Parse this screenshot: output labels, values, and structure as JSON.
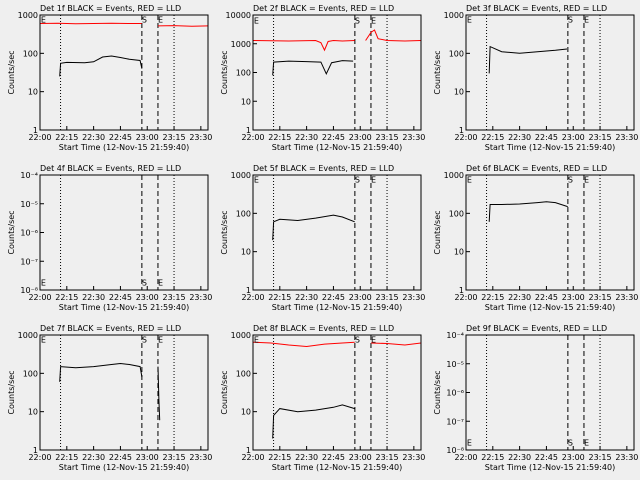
{
  "chart_data": [
    {
      "type": "line",
      "title": "Det 1f BLACK = Events, RED = LLD",
      "xlabel": "Start Time (12-Nov-15 21:59:40)",
      "ylabel": "Counts/sec",
      "log_y": true,
      "xlim": [
        0,
        94
      ],
      "xticks": [
        {
          "value": 0,
          "label": "22:00"
        },
        {
          "value": 15,
          "label": "22:15"
        },
        {
          "value": 30,
          "label": "22:30"
        },
        {
          "value": 45,
          "label": "22:45"
        },
        {
          "value": 60,
          "label": "23:00"
        },
        {
          "value": 75,
          "label": "23:15"
        },
        {
          "value": 90,
          "label": "23:30"
        }
      ],
      "ylim": [
        1,
        1000
      ],
      "yticks": [
        1,
        10,
        100,
        1000
      ],
      "series": [
        {
          "color": "#ff0000",
          "x": [
            0,
            10,
            20,
            30,
            40,
            50,
            56.9,
            null,
            66,
            75,
            85,
            94
          ],
          "values": [
            600,
            610,
            590,
            600,
            610,
            600,
            600,
            null,
            520,
            530,
            510,
            520
          ]
        },
        {
          "color": "#000000",
          "x": [
            11,
            11.5,
            15,
            25,
            30,
            35,
            40,
            45,
            50,
            56,
            57
          ],
          "values": [
            25,
            55,
            58,
            57,
            60,
            80,
            85,
            78,
            70,
            65,
            40
          ]
        }
      ],
      "vlines": [
        {
          "x": 11.5,
          "style": "dotted"
        },
        {
          "x": 57,
          "style": "dashed"
        },
        {
          "x": 66,
          "style": "dashed"
        },
        {
          "x": 75,
          "style": "dotted"
        }
      ],
      "annotations": [
        {
          "text": "E",
          "x": 0.5,
          "y": 800
        },
        {
          "text": "S",
          "x": 57,
          "y": 800
        },
        {
          "text": "E",
          "x": 66,
          "y": 800
        }
      ]
    },
    {
      "type": "line",
      "title": "Det 2f BLACK = Events, RED = LLD",
      "xlabel": "Start Time (12-Nov-15 21:59:40)",
      "ylabel": "Counts/sec",
      "log_y": true,
      "xlim": [
        0,
        94
      ],
      "xticks": [
        {
          "value": 0,
          "label": "22:00"
        },
        {
          "value": 15,
          "label": "22:15"
        },
        {
          "value": 30,
          "label": "22:30"
        },
        {
          "value": 45,
          "label": "22:45"
        },
        {
          "value": 60,
          "label": "23:00"
        },
        {
          "value": 75,
          "label": "23:15"
        },
        {
          "value": 90,
          "label": "23:30"
        }
      ],
      "ylim": [
        1,
        10000
      ],
      "yticks": [
        1,
        10,
        100,
        1000,
        10000
      ],
      "series": [
        {
          "color": "#ff0000",
          "x": [
            0,
            20,
            35,
            38,
            40,
            42,
            45,
            50,
            56.9,
            null,
            63,
            66,
            68,
            70,
            75,
            85,
            94
          ],
          "values": [
            1300,
            1250,
            1300,
            1100,
            600,
            1200,
            1300,
            1250,
            1300,
            null,
            1300,
            2500,
            3000,
            1500,
            1300,
            1250,
            1300
          ]
        },
        {
          "color": "#000000",
          "x": [
            11,
            11.5,
            20,
            30,
            38,
            41,
            44,
            50,
            56
          ],
          "values": [
            80,
            230,
            250,
            240,
            230,
            90,
            220,
            260,
            250
          ]
        }
      ],
      "vlines": [
        {
          "x": 11.5,
          "style": "dotted"
        },
        {
          "x": 57,
          "style": "dashed"
        },
        {
          "x": 66,
          "style": "dashed"
        },
        {
          "x": 75,
          "style": "dotted"
        }
      ],
      "annotations": [
        {
          "text": "E",
          "x": 0.5,
          "y": 7000
        },
        {
          "text": "S",
          "x": 57,
          "y": 7000
        },
        {
          "text": "E",
          "x": 66,
          "y": 7000
        }
      ]
    },
    {
      "type": "line",
      "title": "Det 3f BLACK = Events, RED = LLD",
      "xlabel": "Start Time (12-Nov-15 21:59:40)",
      "ylabel": "Counts/sec",
      "log_y": true,
      "xlim": [
        0,
        94
      ],
      "xticks": [
        {
          "value": 0,
          "label": "22:00"
        },
        {
          "value": 15,
          "label": "22:15"
        },
        {
          "value": 30,
          "label": "22:30"
        },
        {
          "value": 45,
          "label": "22:45"
        },
        {
          "value": 60,
          "label": "23:00"
        },
        {
          "value": 75,
          "label": "23:15"
        },
        {
          "value": 90,
          "label": "23:30"
        }
      ],
      "ylim": [
        1,
        1000
      ],
      "yticks": [
        1,
        10,
        100,
        1000
      ],
      "series": [
        {
          "color": "#000000",
          "x": [
            13,
            13.5,
            20,
            30,
            40,
            50,
            56.5
          ],
          "values": [
            30,
            150,
            110,
            100,
            110,
            120,
            130
          ]
        }
      ],
      "vlines": [
        {
          "x": 11.5,
          "style": "dotted"
        },
        {
          "x": 57,
          "style": "dashed"
        },
        {
          "x": 66,
          "style": "dashed"
        },
        {
          "x": 75,
          "style": "dotted"
        }
      ],
      "annotations": [
        {
          "text": "E",
          "x": 0.5,
          "y": 800
        },
        {
          "text": "S",
          "x": 57,
          "y": 800
        },
        {
          "text": "E",
          "x": 66,
          "y": 800
        }
      ]
    },
    {
      "type": "line",
      "title": "Det 4f BLACK = Events, RED = LLD",
      "xlabel": "Start Time (12-Nov-15 21:59:40)",
      "ylabel": "Counts/sec",
      "log_y": true,
      "xlim": [
        0,
        94
      ],
      "xticks": [
        {
          "value": 0,
          "label": "22:00"
        },
        {
          "value": 15,
          "label": "22:15"
        },
        {
          "value": 30,
          "label": "22:30"
        },
        {
          "value": 45,
          "label": "22:45"
        },
        {
          "value": 60,
          "label": "23:00"
        },
        {
          "value": 75,
          "label": "23:15"
        },
        {
          "value": 90,
          "label": "23:30"
        }
      ],
      "ylim": [
        1e-08,
        0.0001
      ],
      "yticks": [
        {
          "value": 1e-08,
          "label": "10⁻⁸"
        },
        {
          "value": 1e-07,
          "label": "10⁻⁷"
        },
        {
          "value": 1e-06,
          "label": "10⁻⁶"
        },
        {
          "value": 1e-05,
          "label": "10⁻⁵"
        },
        {
          "value": 0.0001,
          "label": "10⁻⁴"
        }
      ],
      "series": [],
      "vlines": [
        {
          "x": 11.5,
          "style": "dotted"
        },
        {
          "x": 57,
          "style": "dashed"
        },
        {
          "x": 66,
          "style": "dashed"
        },
        {
          "x": 75,
          "style": "dotted"
        }
      ],
      "annotations": [
        {
          "text": "E",
          "x": 0.5,
          "y": 2e-08
        },
        {
          "text": "S",
          "x": 57,
          "y": 2e-08
        },
        {
          "text": "E",
          "x": 66,
          "y": 2e-08
        }
      ]
    },
    {
      "type": "line",
      "title": "Det 5f BLACK = Events, RED = LLD",
      "xlabel": "Start Time (12-Nov-15 21:59:40)",
      "ylabel": "Counts/sec",
      "log_y": true,
      "xlim": [
        0,
        94
      ],
      "xticks": [
        {
          "value": 0,
          "label": "22:00"
        },
        {
          "value": 15,
          "label": "22:15"
        },
        {
          "value": 30,
          "label": "22:30"
        },
        {
          "value": 45,
          "label": "22:45"
        },
        {
          "value": 60,
          "label": "23:00"
        },
        {
          "value": 75,
          "label": "23:15"
        },
        {
          "value": 90,
          "label": "23:30"
        }
      ],
      "ylim": [
        1,
        1000
      ],
      "yticks": [
        1,
        10,
        100,
        1000
      ],
      "series": [
        {
          "color": "#000000",
          "x": [
            11,
            11.5,
            15,
            25,
            35,
            45,
            50,
            56.9
          ],
          "values": [
            20,
            60,
            70,
            65,
            75,
            90,
            80,
            60
          ]
        }
      ],
      "vlines": [
        {
          "x": 11.5,
          "style": "dotted"
        },
        {
          "x": 57,
          "style": "dashed"
        },
        {
          "x": 66,
          "style": "dashed"
        },
        {
          "x": 75,
          "style": "dotted"
        }
      ],
      "annotations": [
        {
          "text": "E",
          "x": 0.5,
          "y": 800
        },
        {
          "text": "S",
          "x": 57,
          "y": 800
        },
        {
          "text": "E",
          "x": 66,
          "y": 800
        }
      ]
    },
    {
      "type": "line",
      "title": "Det 6f BLACK = Events, RED = LLD",
      "xlabel": "Start Time (12-Nov-15 21:59:40)",
      "ylabel": "Counts/sec",
      "log_y": true,
      "xlim": [
        0,
        94
      ],
      "xticks": [
        {
          "value": 0,
          "label": "22:00"
        },
        {
          "value": 15,
          "label": "22:15"
        },
        {
          "value": 30,
          "label": "22:30"
        },
        {
          "value": 45,
          "label": "22:45"
        },
        {
          "value": 60,
          "label": "23:00"
        },
        {
          "value": 75,
          "label": "23:15"
        },
        {
          "value": 90,
          "label": "23:30"
        }
      ],
      "ylim": [
        1,
        1000
      ],
      "yticks": [
        1,
        10,
        100,
        1000
      ],
      "series": [
        {
          "color": "#000000",
          "x": [
            13,
            13.5,
            20,
            30,
            40,
            45,
            50,
            56.9
          ],
          "values": [
            60,
            170,
            170,
            175,
            190,
            200,
            190,
            150
          ]
        }
      ],
      "vlines": [
        {
          "x": 11.5,
          "style": "dotted"
        },
        {
          "x": 57,
          "style": "dashed"
        },
        {
          "x": 66,
          "style": "dashed"
        },
        {
          "x": 75,
          "style": "dotted"
        }
      ],
      "annotations": [
        {
          "text": "E",
          "x": 0.5,
          "y": 800
        },
        {
          "text": "S",
          "x": 57,
          "y": 800
        },
        {
          "text": "E",
          "x": 66,
          "y": 800
        }
      ]
    },
    {
      "type": "line",
      "title": "Det 7f BLACK = Events, RED = LLD",
      "xlabel": "Start Time (12-Nov-15 21:59:40)",
      "ylabel": "Counts/sec",
      "log_y": true,
      "xlim": [
        0,
        94
      ],
      "xticks": [
        {
          "value": 0,
          "label": "22:00"
        },
        {
          "value": 15,
          "label": "22:15"
        },
        {
          "value": 30,
          "label": "22:30"
        },
        {
          "value": 45,
          "label": "22:45"
        },
        {
          "value": 60,
          "label": "23:00"
        },
        {
          "value": 75,
          "label": "23:15"
        },
        {
          "value": 90,
          "label": "23:30"
        }
      ],
      "ylim": [
        1,
        1000
      ],
      "yticks": [
        1,
        10,
        100,
        1000
      ],
      "series": [
        {
          "color": "#000000",
          "x": [
            11,
            11.5,
            20,
            30,
            40,
            45,
            50,
            56,
            57,
            null,
            66,
            66.5,
            67
          ],
          "values": [
            60,
            150,
            140,
            150,
            170,
            180,
            170,
            150,
            80,
            null,
            150,
            20,
            6
          ]
        }
      ],
      "vlines": [
        {
          "x": 11.5,
          "style": "dotted"
        },
        {
          "x": 57,
          "style": "dashed"
        },
        {
          "x": 66,
          "style": "dashed"
        },
        {
          "x": 75,
          "style": "dotted"
        }
      ],
      "annotations": [
        {
          "text": "E",
          "x": 0.5,
          "y": 800
        },
        {
          "text": "S",
          "x": 57,
          "y": 800
        },
        {
          "text": "E",
          "x": 66,
          "y": 800
        }
      ]
    },
    {
      "type": "line",
      "title": "Det 8f BLACK = Events, RED = LLD",
      "xlabel": "Start Time (12-Nov-15 21:59:40)",
      "ylabel": "Counts/sec",
      "log_y": true,
      "xlim": [
        0,
        94
      ],
      "xticks": [
        {
          "value": 0,
          "label": "22:00"
        },
        {
          "value": 15,
          "label": "22:15"
        },
        {
          "value": 30,
          "label": "22:30"
        },
        {
          "value": 45,
          "label": "22:45"
        },
        {
          "value": 60,
          "label": "23:00"
        },
        {
          "value": 75,
          "label": "23:15"
        },
        {
          "value": 90,
          "label": "23:30"
        }
      ],
      "ylim": [
        1,
        1000
      ],
      "yticks": [
        1,
        10,
        100,
        1000
      ],
      "series": [
        {
          "color": "#ff0000",
          "x": [
            0,
            10,
            20,
            30,
            40,
            50,
            56.9,
            null,
            66,
            75,
            85,
            94
          ],
          "values": [
            650,
            620,
            550,
            500,
            580,
            620,
            650,
            null,
            620,
            600,
            550,
            620
          ]
        },
        {
          "color": "#000000",
          "x": [
            11,
            11.5,
            15,
            25,
            35,
            45,
            50,
            56.9
          ],
          "values": [
            2,
            8,
            12,
            10,
            11,
            13,
            15,
            12
          ]
        }
      ],
      "vlines": [
        {
          "x": 11.5,
          "style": "dotted"
        },
        {
          "x": 57,
          "style": "dashed"
        },
        {
          "x": 66,
          "style": "dashed"
        },
        {
          "x": 75,
          "style": "dotted"
        }
      ],
      "annotations": [
        {
          "text": "E",
          "x": 0.5,
          "y": 800
        },
        {
          "text": "S",
          "x": 57,
          "y": 800
        },
        {
          "text": "E",
          "x": 66,
          "y": 800
        }
      ]
    },
    {
      "type": "line",
      "title": "Det 9f BLACK = Events, RED = LLD",
      "xlabel": "Start Time (12-Nov-15 21:59:40)",
      "ylabel": "Counts/sec",
      "log_y": true,
      "xlim": [
        0,
        94
      ],
      "xticks": [
        {
          "value": 0,
          "label": "22:00"
        },
        {
          "value": 15,
          "label": "22:15"
        },
        {
          "value": 30,
          "label": "22:30"
        },
        {
          "value": 45,
          "label": "22:45"
        },
        {
          "value": 60,
          "label": "23:00"
        },
        {
          "value": 75,
          "label": "23:15"
        },
        {
          "value": 90,
          "label": "23:30"
        }
      ],
      "ylim": [
        1e-08,
        0.0001
      ],
      "yticks": [
        {
          "value": 1e-08,
          "label": "10⁻⁸"
        },
        {
          "value": 1e-07,
          "label": "10⁻⁷"
        },
        {
          "value": 1e-06,
          "label": "10⁻⁶"
        },
        {
          "value": 1e-05,
          "label": "10⁻⁵"
        },
        {
          "value": 0.0001,
          "label": "10⁻⁴"
        }
      ],
      "series": [],
      "vlines": [
        {
          "x": 11.5,
          "style": "dotted"
        },
        {
          "x": 57,
          "style": "dashed"
        },
        {
          "x": 66,
          "style": "dashed"
        },
        {
          "x": 75,
          "style": "dotted"
        }
      ],
      "annotations": [
        {
          "text": "E",
          "x": 0.5,
          "y": 2e-08
        },
        {
          "text": "S",
          "x": 57,
          "y": 2e-08
        },
        {
          "text": "E",
          "x": 66,
          "y": 2e-08
        }
      ]
    }
  ]
}
